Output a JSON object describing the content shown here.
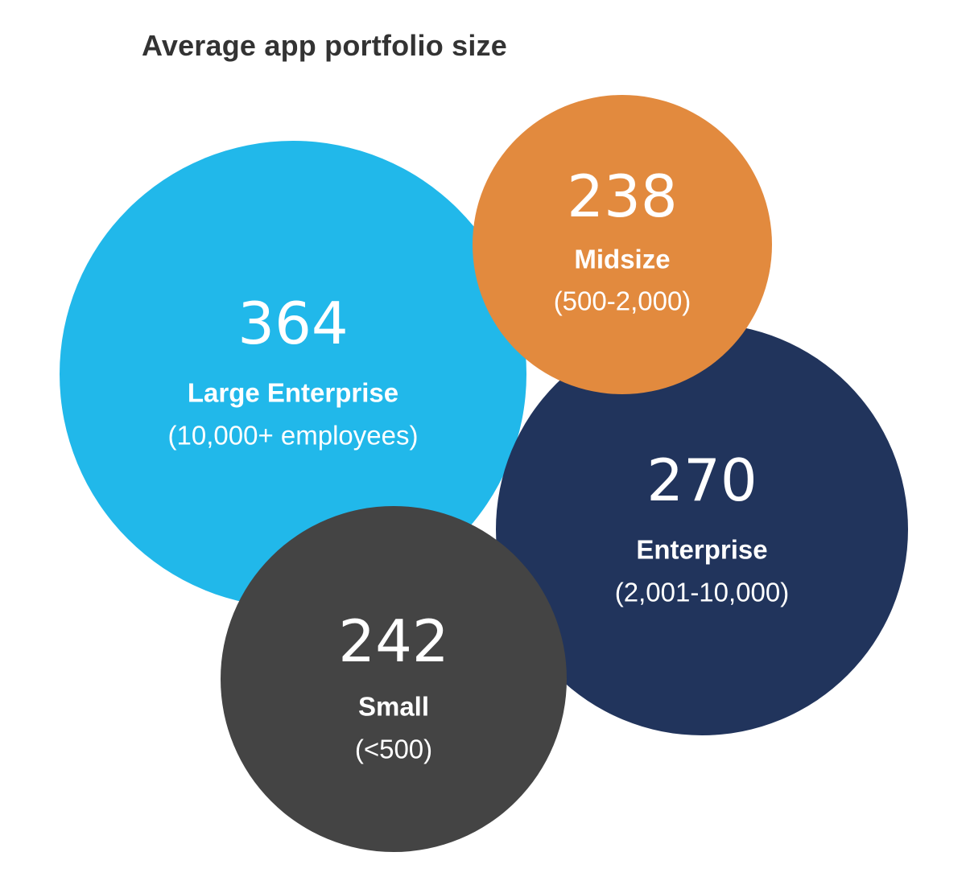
{
  "chart_data": {
    "type": "bubble",
    "title": "Average app portfolio size",
    "series": [
      {
        "name": "Large Enterprise",
        "value": 364,
        "value_label": "364",
        "label": "Large Enterprise",
        "sublabel": "(10,000+ employees)",
        "color": "#21B8EA"
      },
      {
        "name": "Enterprise",
        "value": 270,
        "value_label": "270",
        "label": "Enterprise",
        "sublabel": "(2,001-10,000)",
        "color": "#21345C"
      },
      {
        "name": "Small",
        "value": 242,
        "value_label": "242",
        "label": "Small",
        "sublabel": "(<500)",
        "color": "#444444"
      },
      {
        "name": "Midsize",
        "value": 238,
        "value_label": "238",
        "label": "Midsize",
        "sublabel": "(500-2,000)",
        "color": "#E28A3E"
      }
    ]
  }
}
